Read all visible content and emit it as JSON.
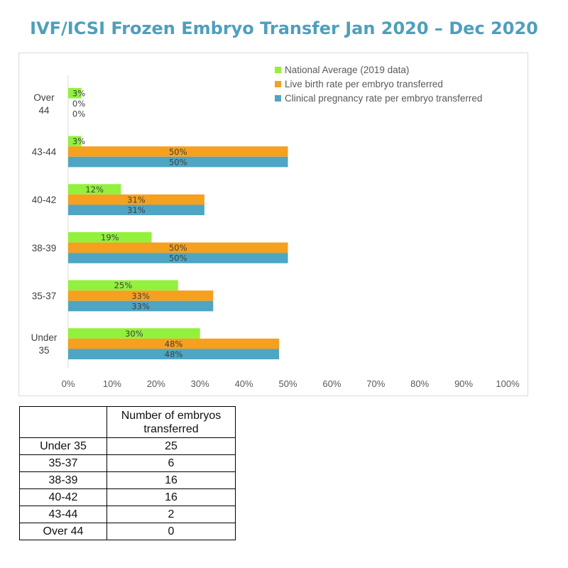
{
  "title": "IVF/ICSI Frozen Embryo Transfer Jan 2020 – Dec 2020",
  "chart_data": {
    "type": "bar",
    "orientation": "horizontal",
    "categories": [
      "Under 35",
      "35-37",
      "38-39",
      "40-42",
      "43-44",
      "Over 44"
    ],
    "category_lines": [
      [
        "Under",
        "35"
      ],
      [
        "35-37"
      ],
      [
        "38-39"
      ],
      [
        "40-42"
      ],
      [
        "43-44"
      ],
      [
        "Over",
        "44"
      ]
    ],
    "series": [
      {
        "name": "National Average (2019 data)",
        "color": "#92f13c",
        "values": [
          30,
          25,
          19,
          12,
          3,
          3
        ],
        "labels": [
          "30%",
          "25%",
          "19%",
          "12%",
          "3%",
          "3%"
        ]
      },
      {
        "name": "Live birth rate per embryo transferred",
        "color": "#f5a01e",
        "values": [
          48,
          33,
          50,
          31,
          50,
          0
        ],
        "labels": [
          "48%",
          "33%",
          "50%",
          "31%",
          "50%",
          "0%"
        ]
      },
      {
        "name": "Clinical pregnancy rate per embryo transferred",
        "color": "#4ea5c4",
        "values": [
          48,
          33,
          50,
          31,
          50,
          0
        ],
        "labels": [
          "48%",
          "33%",
          "50%",
          "31%",
          "50%",
          "0%"
        ]
      }
    ],
    "xlim": [
      0,
      100
    ],
    "x_ticks": [
      "0%",
      "10%",
      "20%",
      "30%",
      "40%",
      "50%",
      "60%",
      "70%",
      "80%",
      "90%",
      "100%"
    ],
    "legend_position": "top-right",
    "grid": false
  },
  "table": {
    "header": [
      "",
      "Number of embryos transferred"
    ],
    "header_lines": [
      "Number of embryos",
      "transferred"
    ],
    "rows": [
      [
        "Under 35",
        "25"
      ],
      [
        "35-37",
        "6"
      ],
      [
        "38-39",
        "16"
      ],
      [
        "40-42",
        "16"
      ],
      [
        "43-44",
        "2"
      ],
      [
        "Over 44",
        "0"
      ]
    ]
  }
}
